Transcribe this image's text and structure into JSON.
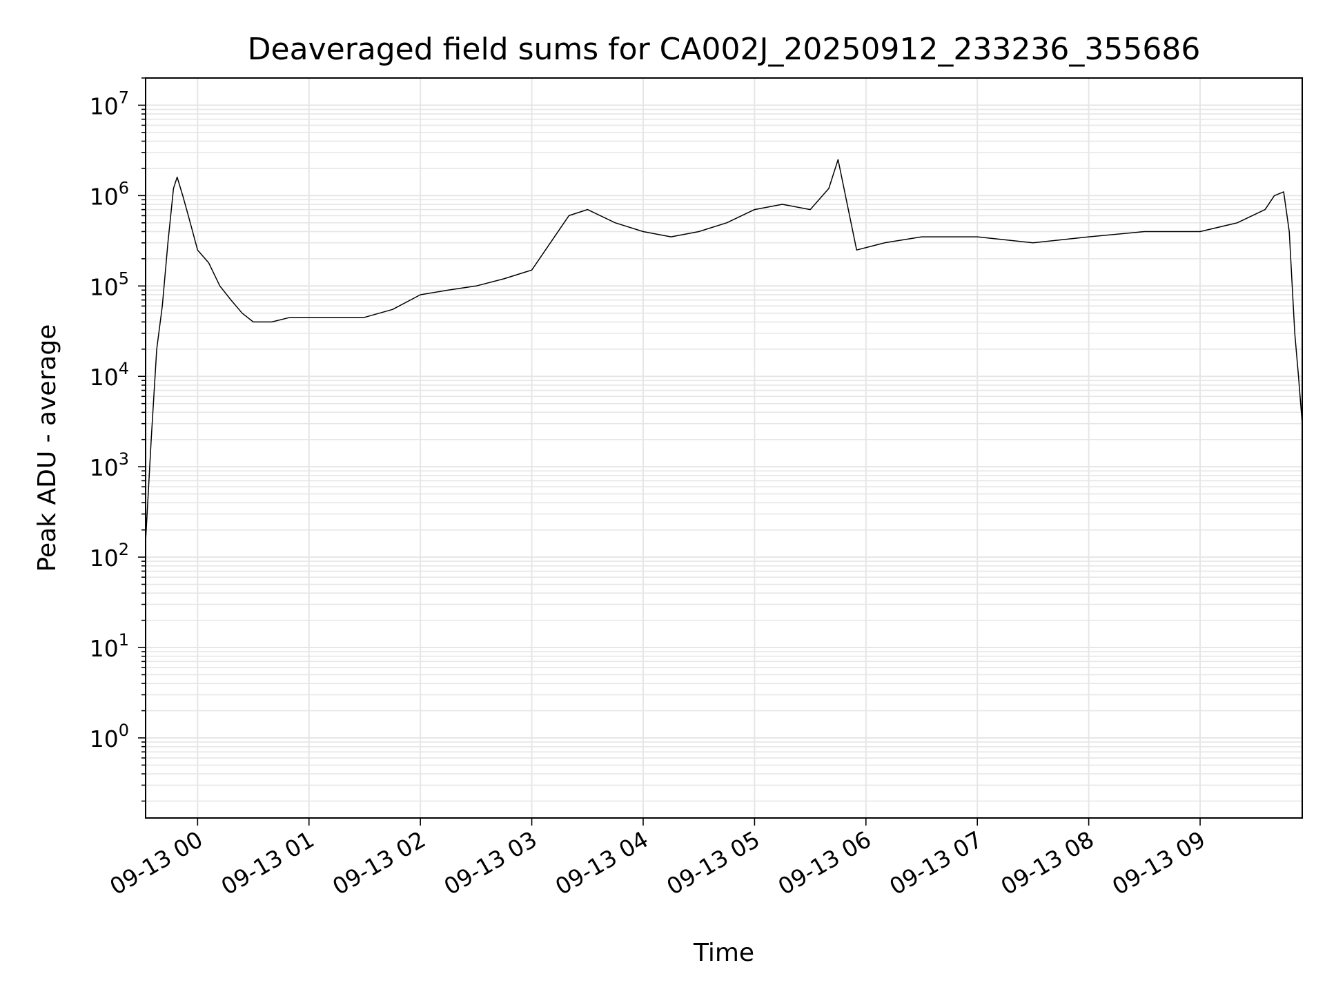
{
  "chart_data": {
    "type": "line",
    "title": "Deaveraged field sums for CA002J_20250912_233236_355686",
    "xlabel": "Time",
    "ylabel": "Peak ADU - average",
    "y_scale": "log",
    "ylim": [
      0.13,
      20000000
    ],
    "xlim": [
      "2025-09-12 23:32",
      "2025-09-13 09:55"
    ],
    "grid": true,
    "line_color": "#000000",
    "grid_color": "#e6e6e6",
    "x_ticks": [
      {
        "at": "2025-09-13 00:00",
        "label": "09-13 00"
      },
      {
        "at": "2025-09-13 01:00",
        "label": "09-13 01"
      },
      {
        "at": "2025-09-13 02:00",
        "label": "09-13 02"
      },
      {
        "at": "2025-09-13 03:00",
        "label": "09-13 03"
      },
      {
        "at": "2025-09-13 04:00",
        "label": "09-13 04"
      },
      {
        "at": "2025-09-13 05:00",
        "label": "09-13 05"
      },
      {
        "at": "2025-09-13 06:00",
        "label": "09-13 06"
      },
      {
        "at": "2025-09-13 07:00",
        "label": "09-13 07"
      },
      {
        "at": "2025-09-13 08:00",
        "label": "09-13 08"
      },
      {
        "at": "2025-09-13 09:00",
        "label": "09-13 09"
      }
    ],
    "y_ticks": [
      {
        "value": 1,
        "base": "10",
        "exp": "0"
      },
      {
        "value": 10,
        "base": "10",
        "exp": "1"
      },
      {
        "value": 100,
        "base": "10",
        "exp": "2"
      },
      {
        "value": 1000,
        "base": "10",
        "exp": "3"
      },
      {
        "value": 10000,
        "base": "10",
        "exp": "4"
      },
      {
        "value": 100000,
        "base": "10",
        "exp": "5"
      },
      {
        "value": 1000000,
        "base": "10",
        "exp": "6"
      },
      {
        "value": 10000000,
        "base": "10",
        "exp": "7"
      }
    ],
    "series": [
      {
        "x": [
          "2025-09-12 23:32",
          "2025-09-12 23:35",
          "2025-09-12 23:38",
          "2025-09-12 23:41",
          "2025-09-12 23:44",
          "2025-09-12 23:47",
          "2025-09-12 23:49",
          "2025-09-12 23:52",
          "2025-09-12 23:55",
          "2025-09-13 00:00",
          "2025-09-13 00:06",
          "2025-09-13 00:12",
          "2025-09-13 00:18",
          "2025-09-13 00:24",
          "2025-09-13 00:30",
          "2025-09-13 00:40",
          "2025-09-13 00:50",
          "2025-09-13 01:00",
          "2025-09-13 01:15",
          "2025-09-13 01:30",
          "2025-09-13 01:45",
          "2025-09-13 02:00",
          "2025-09-13 02:15",
          "2025-09-13 02:30",
          "2025-09-13 02:45",
          "2025-09-13 03:00",
          "2025-09-13 03:10",
          "2025-09-13 03:20",
          "2025-09-13 03:30",
          "2025-09-13 03:45",
          "2025-09-13 04:00",
          "2025-09-13 04:15",
          "2025-09-13 04:30",
          "2025-09-13 04:45",
          "2025-09-13 05:00",
          "2025-09-13 05:15",
          "2025-09-13 05:30",
          "2025-09-13 05:40",
          "2025-09-13 05:45",
          "2025-09-13 05:55",
          "2025-09-13 06:10",
          "2025-09-13 06:30",
          "2025-09-13 07:00",
          "2025-09-13 07:30",
          "2025-09-13 08:00",
          "2025-09-13 08:30",
          "2025-09-13 09:00",
          "2025-09-13 09:20",
          "2025-09-13 09:35",
          "2025-09-13 09:40",
          "2025-09-13 09:45",
          "2025-09-13 09:48",
          "2025-09-13 09:51",
          "2025-09-13 09:53",
          "2025-09-13 09:55"
        ],
        "y": [
          150,
          2000,
          20000,
          60000,
          300000,
          1200000,
          1600000,
          1000000,
          600000,
          250000,
          180000,
          100000,
          70000,
          50000,
          40000,
          40000,
          45000,
          45000,
          45000,
          45000,
          55000,
          80000,
          90000,
          100000,
          120000,
          150000,
          300000,
          600000,
          700000,
          500000,
          400000,
          350000,
          400000,
          500000,
          700000,
          800000,
          700000,
          1200000,
          2500000,
          250000,
          300000,
          350000,
          350000,
          300000,
          350000,
          400000,
          400000,
          500000,
          700000,
          1000000,
          1100000,
          400000,
          30000,
          10000,
          3000
        ]
      }
    ]
  }
}
